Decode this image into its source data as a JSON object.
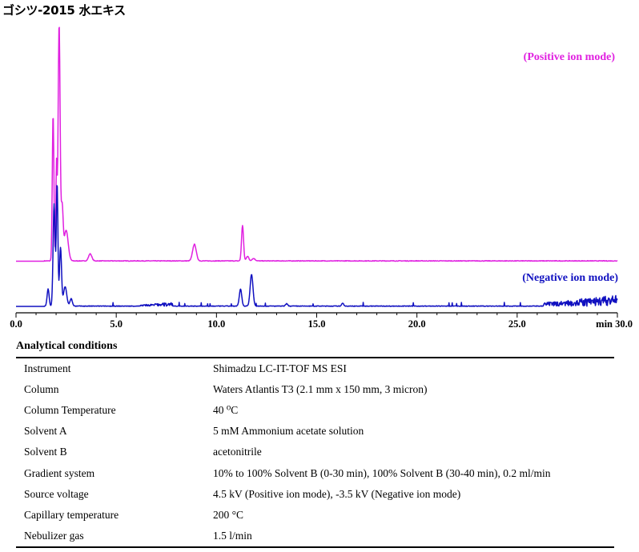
{
  "title": "ゴシツ-2015 水エキス",
  "chart_data": {
    "type": "line",
    "xlim": [
      0,
      30
    ],
    "x_ticks": [
      "0.0",
      "5.0",
      "10.0",
      "15.0",
      "20.0",
      "25.0",
      "min 30.0"
    ],
    "x_tick_values": [
      0,
      5,
      10,
      15,
      20,
      25,
      30
    ],
    "grid": false,
    "series": [
      {
        "name": "(Positive ion mode)",
        "color": "#e020e0",
        "baseline": 0,
        "peaks": [
          {
            "x": 1.85,
            "height": 62,
            "width": 0.04
          },
          {
            "x": 2.02,
            "height": 40,
            "width": 0.03
          },
          {
            "x": 2.15,
            "height": 100,
            "width": 0.05
          },
          {
            "x": 2.3,
            "height": 22,
            "width": 0.05
          },
          {
            "x": 2.5,
            "height": 13,
            "width": 0.1
          },
          {
            "x": 3.7,
            "height": 3,
            "width": 0.08
          },
          {
            "x": 8.9,
            "height": 7,
            "width": 0.09
          },
          {
            "x": 11.3,
            "height": 15,
            "width": 0.05
          },
          {
            "x": 11.55,
            "height": 2,
            "width": 0.06
          },
          {
            "x": 11.85,
            "height": 1,
            "width": 0.08
          }
        ]
      },
      {
        "name": "(Negative ion mode)",
        "color": "#1010c0",
        "baseline": 0,
        "peaks": [
          {
            "x": 1.6,
            "height": 7,
            "width": 0.05
          },
          {
            "x": 1.9,
            "height": 42,
            "width": 0.05
          },
          {
            "x": 2.05,
            "height": 50,
            "width": 0.04
          },
          {
            "x": 2.22,
            "height": 24,
            "width": 0.05
          },
          {
            "x": 2.45,
            "height": 8,
            "width": 0.08
          },
          {
            "x": 2.75,
            "height": 3,
            "width": 0.06
          },
          {
            "x": 11.2,
            "height": 7,
            "width": 0.06
          },
          {
            "x": 11.75,
            "height": 13,
            "width": 0.07
          },
          {
            "x": 13.5,
            "height": 1,
            "width": 0.05
          },
          {
            "x": 16.3,
            "height": 1.2,
            "width": 0.05
          }
        ],
        "noise_regions": [
          {
            "from": 6.2,
            "to": 7.8,
            "level": 0.9
          },
          {
            "from": 26.3,
            "to": 30,
            "level": 2.5
          }
        ]
      }
    ]
  },
  "conditions": {
    "heading": "Analytical conditions",
    "rows": [
      {
        "label": "Instrument",
        "value": "Shimadzu LC-IT-TOF MS ESI"
      },
      {
        "label": "Column",
        "value": "Waters Atlantis T3 (2.1 mm x 150 mm, 3 micron)"
      },
      {
        "label": "Column Temperature",
        "value": "40 ⁰C"
      },
      {
        "label": "Solvent A",
        "value": "5 mM Ammonium acetate solution"
      },
      {
        "label": "Solvent B",
        "value": "acetonitrile"
      },
      {
        "label": "Gradient system",
        "value": "10% to 100% Solvent B (0-30 min), 100% Solvent B (30-40 min), 0.2 ml/min"
      },
      {
        "label": "Source voltage",
        "value": "4.5 kV (Positive ion mode), -3.5 kV (Negative ion mode)"
      },
      {
        "label": "Capillary temperature",
        "value": "200 °C"
      },
      {
        "label": "Nebulizer gas",
        "value": "1.5 l/min"
      }
    ]
  }
}
